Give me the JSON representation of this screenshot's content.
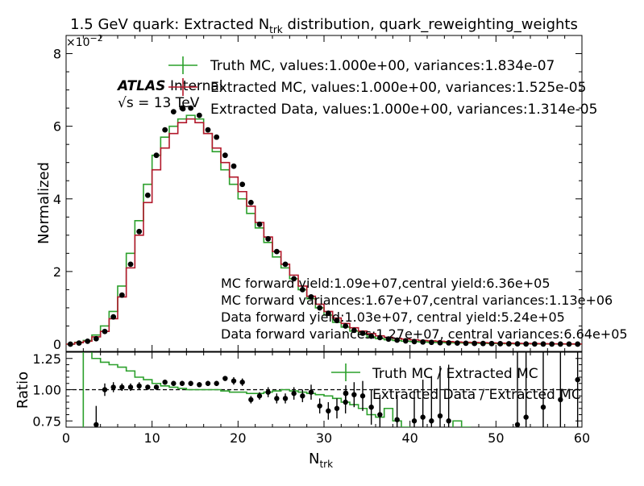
{
  "chart_data": {
    "type": "step",
    "title": "1.5 GeV quark: Extracted N",
    "title_sub": "trk",
    "title_suffix": " distribution, quark_reweighting_weights",
    "xlabel": "N",
    "xlabel_sub": "trk",
    "ylabel": "Normalized",
    "ratio_ylabel": "Ratio",
    "y_multiplier": "×10",
    "y_multiplier_exp": "−2",
    "xlim": [
      0,
      60
    ],
    "ylim": [
      -0.2,
      8.5
    ],
    "ratio_ylim": [
      0.7,
      1.3
    ],
    "x_ticks": [
      0,
      10,
      20,
      30,
      40,
      50,
      60
    ],
    "x_tick_labels": [
      "0",
      "10",
      "20",
      "30",
      "40",
      "50",
      "60"
    ],
    "y_ticks": [
      0,
      2,
      4,
      6,
      8
    ],
    "y_tick_labels": [
      "0",
      "2",
      "4",
      "6",
      "8"
    ],
    "ratio_ticks": [
      0.75,
      1.0,
      1.25
    ],
    "ratio_tick_labels": [
      "0.75",
      "1.00",
      "1.25"
    ],
    "ratio_reference": 1.0,
    "atlas_label": "ATLAS",
    "atlas_sublabel": "Internal",
    "energy_label": "√s = 13 TeV",
    "legend": {
      "placement": "top-right",
      "entries": [
        "Truth MC, values:1.000e+00, variances:1.834e-07",
        "Extracted MC, values:1.000e+00, variances:1.525e-05",
        "Extracted Data, values:1.000e+00, variances:1.314e-05"
      ]
    },
    "ratio_legend": {
      "placement": "top-right",
      "entries": [
        "Truth MC / Extracted MC",
        "Extracted Data / Extracted MC"
      ]
    },
    "annotations": [
      "MC forward yield:1.09e+07,central yield:6.36e+05",
      "MC forward variances:1.67e+07,central variances:1.13e+06",
      "Data forward yield:1.03e+07, central yield:5.24e+05",
      "Data forward variances:1.27e+07, central variances:6.64e+05"
    ],
    "colors": {
      "truth": "#2ca02c",
      "extracted_mc": "#b2182b",
      "data": "#000000"
    },
    "series": [
      {
        "name": "Truth MC",
        "bin_edges": [
          0,
          1,
          2,
          3,
          4,
          5,
          6,
          7,
          8,
          9,
          10,
          11,
          12,
          13,
          14,
          15,
          16,
          17,
          18,
          19,
          20,
          21,
          22,
          23,
          24,
          25,
          26,
          27,
          28,
          29,
          30,
          31,
          32,
          33,
          34,
          35,
          36,
          37,
          38,
          39,
          40,
          41,
          42,
          43,
          44,
          45,
          46,
          47,
          48,
          49,
          50,
          51,
          52,
          53,
          54,
          55,
          56,
          57,
          58,
          59,
          60
        ],
        "values": [
          0.0,
          0.05,
          0.1,
          0.25,
          0.5,
          0.9,
          1.6,
          2.5,
          3.4,
          4.4,
          5.2,
          5.7,
          6.0,
          6.2,
          6.3,
          6.2,
          5.8,
          5.3,
          4.8,
          4.4,
          4.0,
          3.6,
          3.2,
          2.8,
          2.4,
          2.1,
          1.8,
          1.5,
          1.25,
          1.0,
          0.8,
          0.6,
          0.47,
          0.36,
          0.27,
          0.2,
          0.15,
          0.12,
          0.1,
          0.08,
          0.07,
          0.06,
          0.05,
          0.045,
          0.04,
          0.035,
          0.03,
          0.025,
          0.02,
          0.018,
          0.015,
          0.012,
          0.01,
          0.008,
          0.006,
          0.005,
          0.004,
          0.003,
          0.002,
          0.002
        ]
      },
      {
        "name": "Extracted MC",
        "bin_edges": [
          0,
          1,
          2,
          3,
          4,
          5,
          6,
          7,
          8,
          9,
          10,
          11,
          12,
          13,
          14,
          15,
          16,
          17,
          18,
          19,
          20,
          21,
          22,
          23,
          24,
          25,
          26,
          27,
          28,
          29,
          30,
          31,
          32,
          33,
          34,
          35,
          36,
          37,
          38,
          39,
          40,
          41,
          42,
          43,
          44,
          45,
          46,
          47,
          48,
          49,
          50,
          51,
          52,
          53,
          54,
          55,
          56,
          57,
          58,
          59,
          60
        ],
        "values": [
          0.0,
          0.04,
          0.08,
          0.2,
          0.35,
          0.7,
          1.3,
          2.1,
          3.0,
          3.9,
          4.8,
          5.4,
          5.8,
          6.1,
          6.2,
          6.1,
          5.8,
          5.4,
          5.0,
          4.6,
          4.2,
          3.8,
          3.35,
          2.95,
          2.55,
          2.2,
          1.9,
          1.6,
          1.32,
          1.1,
          0.9,
          0.72,
          0.57,
          0.45,
          0.36,
          0.29,
          0.23,
          0.19,
          0.16,
          0.14,
          0.12,
          0.1,
          0.09,
          0.08,
          0.07,
          0.06,
          0.05,
          0.045,
          0.04,
          0.035,
          0.03,
          0.025,
          0.02,
          0.018,
          0.015,
          0.012,
          0.01,
          0.008,
          0.006,
          0.005
        ]
      },
      {
        "name": "Extracted Data",
        "x": [
          0.5,
          1.5,
          2.5,
          3.5,
          4.5,
          5.5,
          6.5,
          7.5,
          8.5,
          9.5,
          10.5,
          11.5,
          12.5,
          13.5,
          14.5,
          15.5,
          16.5,
          17.5,
          18.5,
          19.5,
          20.5,
          21.5,
          22.5,
          23.5,
          24.5,
          25.5,
          26.5,
          27.5,
          28.5,
          29.5,
          30.5,
          31.5,
          32.5,
          33.5,
          34.5,
          35.5,
          36.5,
          37.5,
          38.5,
          39.5,
          40.5,
          41.5,
          42.5,
          43.5,
          44.5,
          45.5,
          46.5,
          47.5,
          48.5,
          49.5,
          50.5,
          51.5,
          52.5,
          53.5,
          54.5,
          55.5,
          56.5,
          57.5,
          58.5,
          59.5
        ],
        "values": [
          0.0,
          0.03,
          0.08,
          0.15,
          0.35,
          0.75,
          1.35,
          2.2,
          3.1,
          4.1,
          5.2,
          5.9,
          6.4,
          6.5,
          6.5,
          6.3,
          5.9,
          5.7,
          5.2,
          4.9,
          4.4,
          3.9,
          3.3,
          2.9,
          2.55,
          2.2,
          1.8,
          1.5,
          1.3,
          1.0,
          0.85,
          0.65,
          0.5,
          0.38,
          0.3,
          0.22,
          0.18,
          0.14,
          0.11,
          0.09,
          0.07,
          0.06,
          0.05,
          0.04,
          0.035,
          0.03,
          0.025,
          0.02,
          0.018,
          0.015,
          0.012,
          0.01,
          0.008,
          0.006,
          0.005,
          0.004,
          0.003,
          0.002,
          0.002,
          0.001
        ]
      }
    ],
    "ratio_series": [
      {
        "name": "Truth MC / Extracted MC",
        "bin_edges": [
          0,
          1,
          2,
          3,
          4,
          5,
          6,
          7,
          8,
          9,
          10,
          11,
          12,
          13,
          14,
          15,
          16,
          17,
          18,
          19,
          20,
          21,
          22,
          23,
          24,
          25,
          26,
          27,
          28,
          29,
          30,
          31,
          32,
          33,
          34,
          35,
          36,
          37,
          38,
          39,
          40,
          41,
          42,
          43,
          44,
          45,
          46,
          47,
          48
        ],
        "values": [
          0.5,
          0.6,
          1.4,
          1.25,
          1.22,
          1.2,
          1.18,
          1.15,
          1.1,
          1.08,
          1.05,
          1.03,
          1.02,
          1.01,
          1.0,
          1.0,
          1.0,
          1.0,
          0.99,
          0.98,
          0.98,
          0.97,
          0.97,
          0.98,
          0.99,
          1.0,
          0.99,
          0.98,
          0.97,
          0.96,
          0.95,
          0.93,
          0.9,
          0.88,
          0.85,
          0.8,
          0.78,
          0.85,
          0.75,
          0.7,
          0.55,
          0.45,
          0.5,
          0.55,
          0.6,
          0.75,
          0.7,
          0.68
        ]
      },
      {
        "name": "Extracted Data / Extracted MC",
        "x": [
          3.5,
          4.5,
          5.5,
          6.5,
          7.5,
          8.5,
          9.5,
          10.5,
          11.5,
          12.5,
          13.5,
          14.5,
          15.5,
          16.5,
          17.5,
          18.5,
          19.5,
          20.5,
          21.5,
          22.5,
          23.5,
          24.5,
          25.5,
          26.5,
          27.5,
          28.5,
          29.5,
          30.5,
          31.5,
          32.5,
          33.5,
          34.5,
          35.5,
          36.5,
          38.5,
          40.5,
          41.5,
          42.5,
          43.5,
          44.5,
          52.5,
          53.5,
          55.5,
          57.5,
          59.5
        ],
        "values": [
          0.72,
          1.0,
          1.02,
          1.02,
          1.02,
          1.03,
          1.02,
          1.02,
          1.06,
          1.05,
          1.05,
          1.05,
          1.04,
          1.05,
          1.05,
          1.09,
          1.07,
          1.06,
          0.92,
          0.95,
          0.98,
          0.93,
          0.93,
          0.97,
          0.95,
          0.98,
          0.87,
          0.83,
          0.85,
          0.9,
          0.96,
          0.95,
          0.86,
          0.8,
          0.76,
          0.75,
          0.78,
          0.75,
          0.79,
          0.75,
          0.72,
          0.78,
          0.86,
          0.92,
          1.08
        ],
        "errors": [
          0.15,
          0.05,
          0.04,
          0.03,
          0.03,
          0.03,
          0.02,
          0.02,
          0.02,
          0.02,
          0.02,
          0.02,
          0.02,
          0.02,
          0.02,
          0.02,
          0.03,
          0.03,
          0.03,
          0.03,
          0.04,
          0.04,
          0.04,
          0.05,
          0.05,
          0.06,
          0.06,
          0.07,
          0.08,
          0.09,
          0.1,
          0.12,
          0.14,
          0.16,
          0.2,
          0.25,
          0.3,
          0.35,
          0.4,
          0.45,
          0.6,
          0.6,
          0.6,
          0.6,
          0.6
        ]
      }
    ]
  }
}
